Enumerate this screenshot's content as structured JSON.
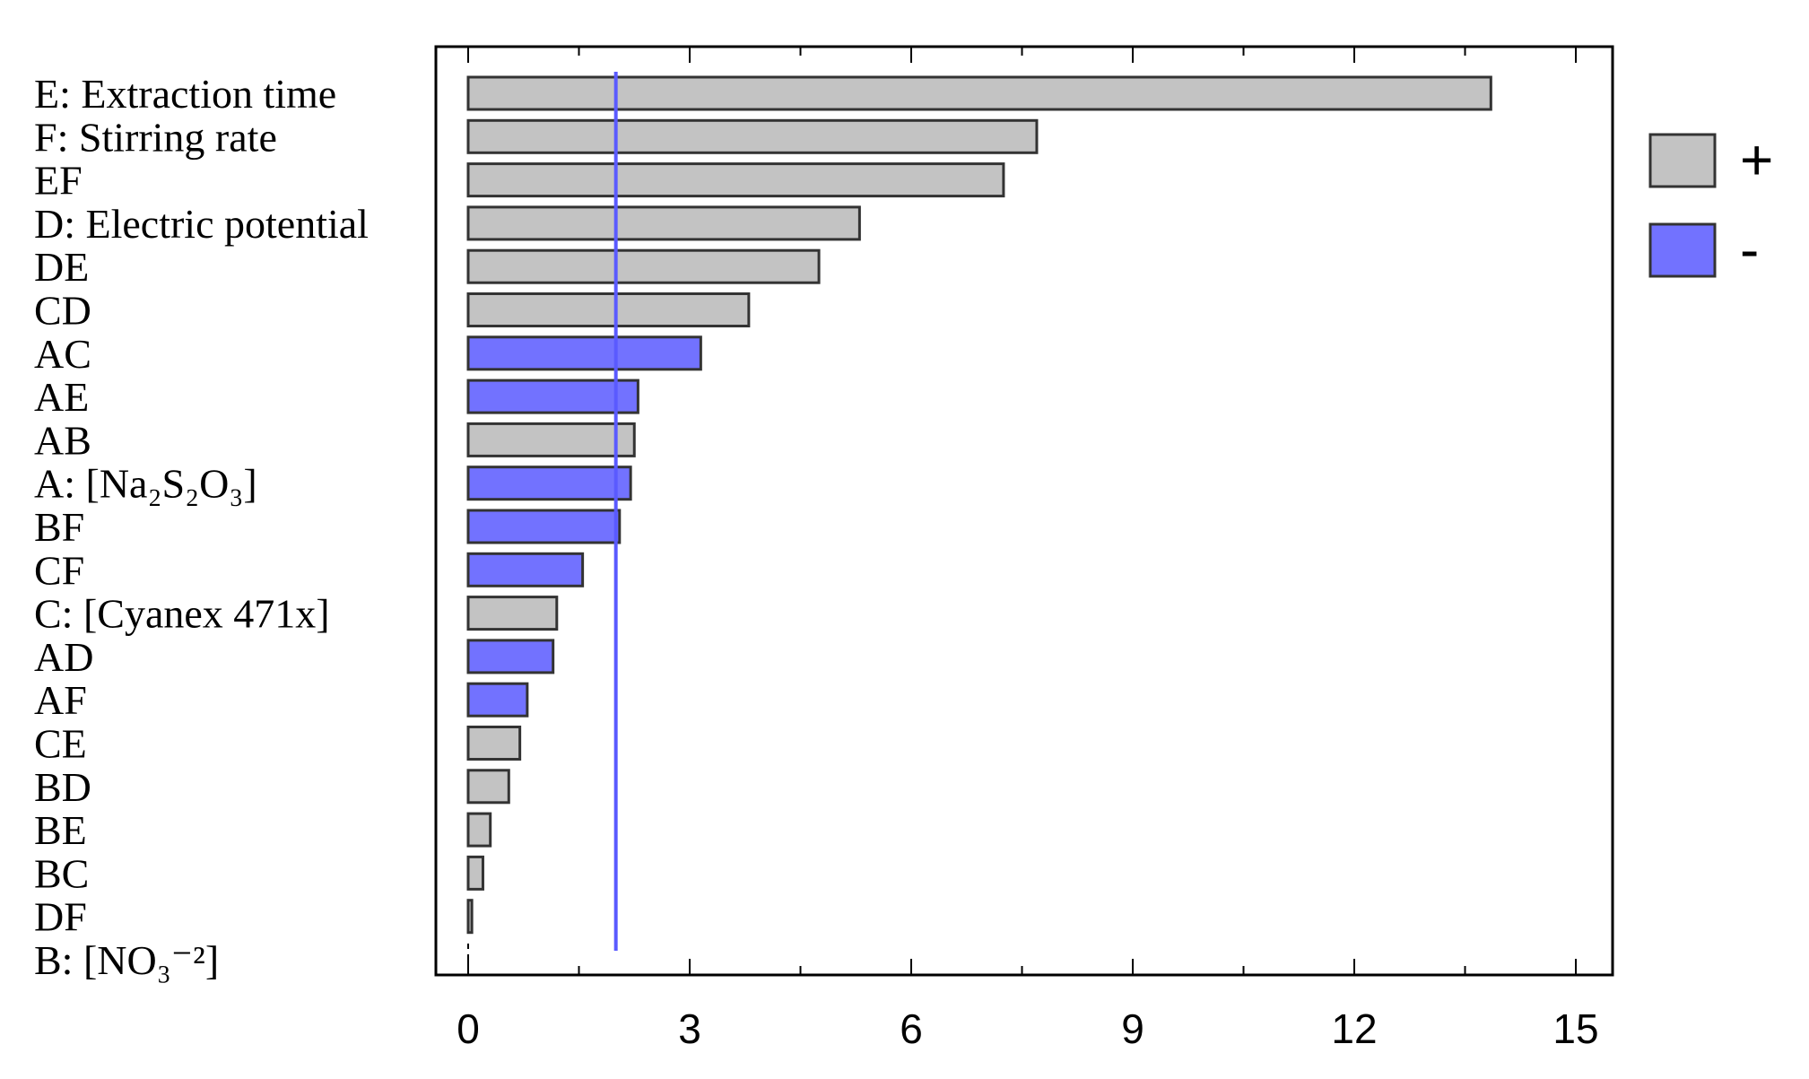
{
  "chart_data": {
    "type": "bar",
    "orientation": "horizontal",
    "title": "",
    "xlabel": "",
    "ylabel": "",
    "xlim": [
      0,
      15
    ],
    "xticks": [
      0,
      3,
      6,
      9,
      12,
      15
    ],
    "grid": false,
    "legend_position": "right",
    "reference_line": {
      "value": 2.0,
      "color": "#5a5aff"
    },
    "legend": [
      {
        "sign": "+",
        "label": "+",
        "color": "#c3c3c3"
      },
      {
        "sign": "-",
        "label": "-",
        "color": "#7272ff"
      }
    ],
    "categories": [
      {
        "label": "E: Extraction time",
        "value": 13.85,
        "sign": "+"
      },
      {
        "label": "F: Stirring rate",
        "value": 7.7,
        "sign": "+"
      },
      {
        "label": "EF",
        "value": 7.25,
        "sign": "+"
      },
      {
        "label": "D: Electric potential",
        "value": 5.3,
        "sign": "+"
      },
      {
        "label": "DE",
        "value": 4.75,
        "sign": "+"
      },
      {
        "label": "CD",
        "value": 3.8,
        "sign": "+"
      },
      {
        "label": "AC",
        "value": 3.15,
        "sign": "-"
      },
      {
        "label": "AE",
        "value": 2.3,
        "sign": "-"
      },
      {
        "label": "AB",
        "value": 2.25,
        "sign": "+"
      },
      {
        "label": "A: [Na₂S₂O₃]",
        "value": 2.2,
        "sign": "-"
      },
      {
        "label": "BF",
        "value": 2.05,
        "sign": "-"
      },
      {
        "label": "CF",
        "value": 1.55,
        "sign": "-"
      },
      {
        "label": "C: [Cyanex 471x]",
        "value": 1.2,
        "sign": "+"
      },
      {
        "label": "AD",
        "value": 1.15,
        "sign": "-"
      },
      {
        "label": "AF",
        "value": 0.8,
        "sign": "-"
      },
      {
        "label": "CE",
        "value": 0.7,
        "sign": "+"
      },
      {
        "label": "BD",
        "value": 0.55,
        "sign": "+"
      },
      {
        "label": "BE",
        "value": 0.3,
        "sign": "+"
      },
      {
        "label": "BC",
        "value": 0.2,
        "sign": "+"
      },
      {
        "label": "DF",
        "value": 0.05,
        "sign": "+"
      },
      {
        "label": "B: [NO₃⁻²]",
        "value": 0.0,
        "sign": "+"
      }
    ]
  }
}
